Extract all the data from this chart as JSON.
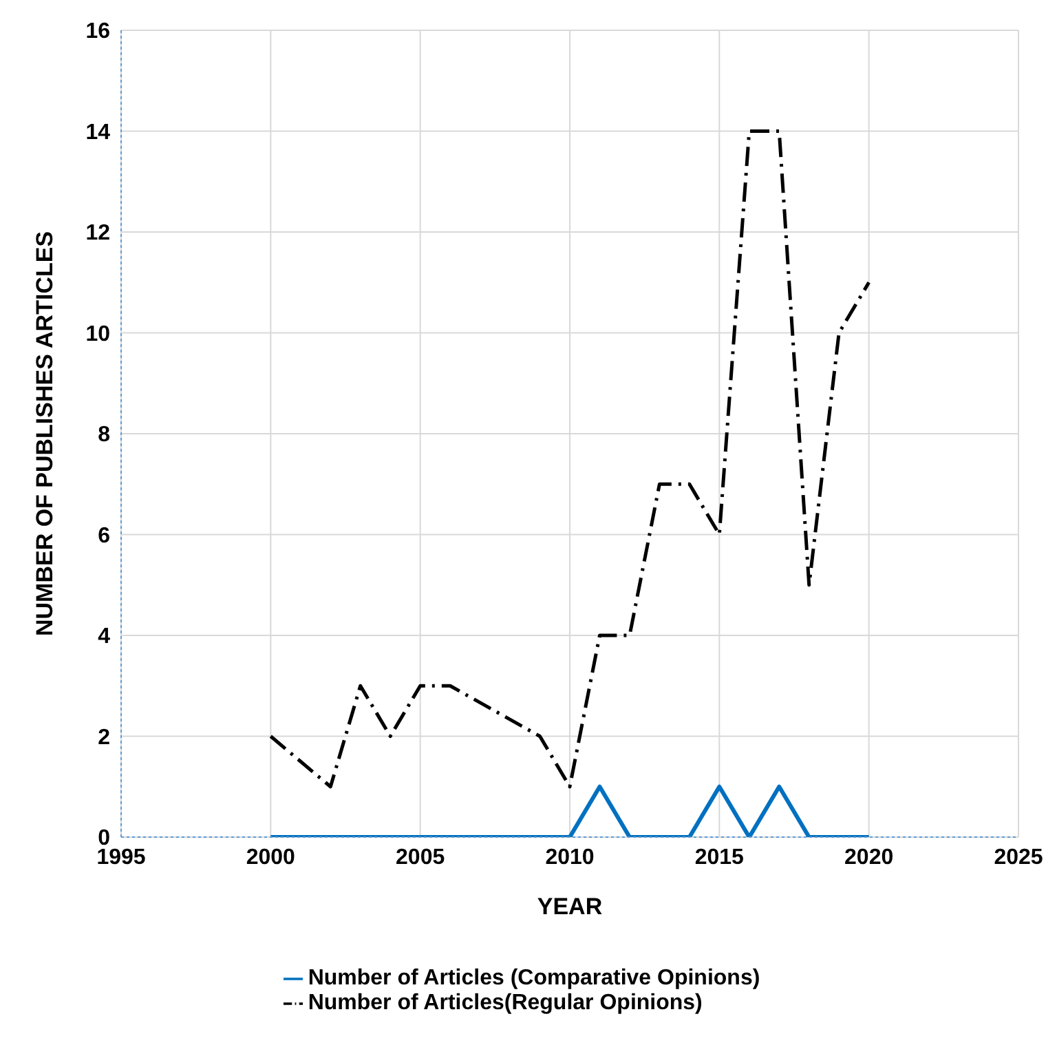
{
  "chart_data": {
    "type": "line",
    "xlabel": "YEAR",
    "ylabel": "NUMBER OF PUBLISHES ARTICLES",
    "xlim": [
      1995,
      2025
    ],
    "xticks": [
      1995,
      2000,
      2005,
      2010,
      2015,
      2020,
      2025
    ],
    "ylim": [
      0,
      16
    ],
    "yticks": [
      0,
      2,
      4,
      6,
      8,
      10,
      12,
      14,
      16
    ],
    "grid": true,
    "legend": "bottom",
    "marker": "none",
    "series": [
      {
        "name": "Number of Articles (Comparative Opinions)",
        "color": "#0070c0",
        "line_style": "solid",
        "x": [
          2000,
          2001,
          2002,
          2003,
          2004,
          2005,
          2006,
          2007,
          2008,
          2009,
          2010,
          2011,
          2012,
          2013,
          2014,
          2015,
          2016,
          2017,
          2018,
          2019,
          2020
        ],
        "values": [
          0,
          0,
          0,
          0,
          0,
          0,
          0,
          0,
          0,
          0,
          0,
          1,
          0,
          0,
          0,
          1,
          0,
          1,
          0,
          0,
          0
        ]
      },
      {
        "name": "Number of Articles(Regular Opinions)",
        "color": "#000000",
        "line_style": "dashed",
        "x": [
          2000,
          2002,
          2003,
          2004,
          2005,
          2006,
          2009,
          2010,
          2011,
          2012,
          2013,
          2014,
          2015,
          2016,
          2017,
          2018,
          2019,
          2020
        ],
        "values": [
          2,
          1,
          3,
          2,
          3,
          3,
          2,
          1,
          4,
          4,
          7,
          7,
          6,
          14,
          14,
          5,
          10,
          11
        ]
      }
    ]
  }
}
